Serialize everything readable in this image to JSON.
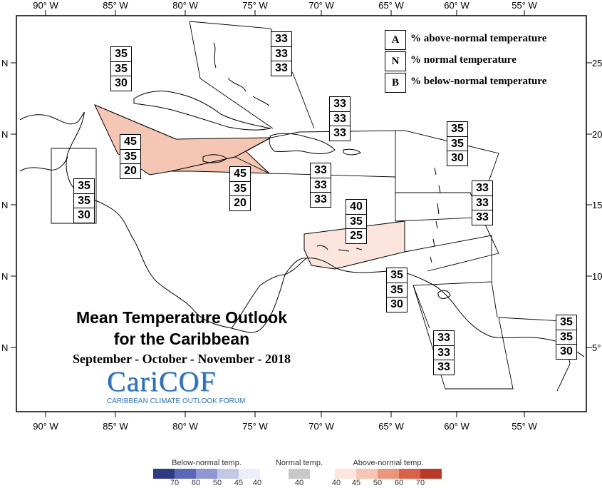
{
  "legend": {
    "rows": [
      {
        "letter": "A",
        "text": "% above-normal temperature"
      },
      {
        "letter": "N",
        "text": "% normal temperature"
      },
      {
        "letter": "B",
        "text": "% below-normal temperature"
      }
    ]
  },
  "title": {
    "line1": "Mean Temperature Outlook",
    "line2": "for the Caribbean",
    "period": "September - October - November - 2018"
  },
  "logo": {
    "name": "CariCOF",
    "subtitle": "CARIBBEAN CLIMATE OUTLOOK FORUM"
  },
  "axes": {
    "longitudes": [
      "90° W",
      "85° W",
      "80° W",
      "75° W",
      "70° W",
      "65° W",
      "60° W",
      "55° W"
    ],
    "latitudes_left": [
      "N",
      "N",
      "N",
      "N",
      "N"
    ],
    "latitudes_right": [
      "25",
      "20",
      "15",
      "10",
      "5°"
    ]
  },
  "regions": [
    {
      "id": "belize-yucatan",
      "above": "35",
      "normal": "35",
      "below": "30"
    },
    {
      "id": "bahamas-west",
      "above": "35",
      "normal": "35",
      "below": "30"
    },
    {
      "id": "bahamas-east",
      "above": "33",
      "normal": "33",
      "below": "33"
    },
    {
      "id": "cuba",
      "above": "45",
      "normal": "35",
      "below": "20",
      "fill": "#f4c6b3"
    },
    {
      "id": "jamaica",
      "above": "45",
      "normal": "35",
      "below": "20",
      "fill": "#f4c6b3"
    },
    {
      "id": "hispaniola-north",
      "above": "33",
      "normal": "33",
      "below": "33"
    },
    {
      "id": "hispaniola-south",
      "above": "33",
      "normal": "33",
      "below": "33"
    },
    {
      "id": "leeward-islands",
      "above": "35",
      "normal": "35",
      "below": "30"
    },
    {
      "id": "windward-islands",
      "above": "33",
      "normal": "33",
      "below": "33"
    },
    {
      "id": "abc-islands",
      "above": "40",
      "normal": "35",
      "below": "25",
      "fill": "#fbe5dc"
    },
    {
      "id": "trinidad",
      "above": "35",
      "normal": "35",
      "below": "30"
    },
    {
      "id": "guyana",
      "above": "33",
      "normal": "33",
      "below": "33"
    },
    {
      "id": "suriname",
      "above": "35",
      "normal": "35",
      "below": "30"
    }
  ],
  "scale": {
    "below": {
      "title": "Below-normal temp.",
      "ticks": [
        "70",
        "60",
        "50",
        "45",
        "40"
      ],
      "colors": [
        "#2e3a82",
        "#5a68b8",
        "#8f98d0",
        "#c3c8e8",
        "#eceef9"
      ]
    },
    "normal": {
      "title": "Normal temp.",
      "ticks": [
        "40"
      ],
      "colors": [
        "#c8c8c8"
      ]
    },
    "above": {
      "title": "Above-normal temp.",
      "ticks": [
        "40",
        "45",
        "50",
        "60",
        "70"
      ],
      "colors": [
        "#fbe5dc",
        "#f4c6b3",
        "#e9967b",
        "#d8614a",
        "#b83a26"
      ]
    }
  }
}
